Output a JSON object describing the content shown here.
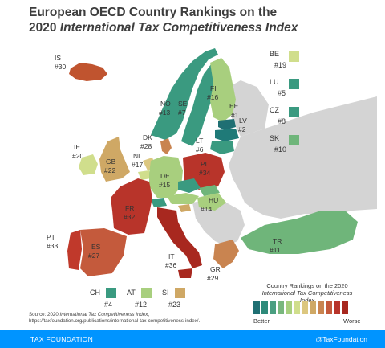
{
  "title": {
    "line1": "European OECD Country Rankings on the",
    "line2_prefix": "2020 ",
    "line2_italic": "International Tax Competitiveness Index"
  },
  "colors": {
    "teal_dark": "#1f7a78",
    "teal": "#3a9a80",
    "green": "#6fb57a",
    "light_green": "#a8cf7e",
    "yellow_green": "#d0de8c",
    "tan": "#cfa865",
    "orange": "#c98450",
    "red": "#c0392b",
    "dark_red": "#a8281f",
    "non_oecd": "#d4d4d4",
    "footer": "#0094ff"
  },
  "countries": [
    {
      "code": "IS",
      "rank": "#30"
    },
    {
      "code": "NO",
      "rank": "#13"
    },
    {
      "code": "SE",
      "rank": "#7"
    },
    {
      "code": "FI",
      "rank": "#16"
    },
    {
      "code": "EE",
      "rank": "#1"
    },
    {
      "code": "LV",
      "rank": "#2"
    },
    {
      "code": "LT",
      "rank": "#6"
    },
    {
      "code": "DK",
      "rank": "#28"
    },
    {
      "code": "IE",
      "rank": "#20"
    },
    {
      "code": "GB",
      "rank": "#22"
    },
    {
      "code": "NL",
      "rank": "#17"
    },
    {
      "code": "DE",
      "rank": "#15"
    },
    {
      "code": "PL",
      "rank": "#34"
    },
    {
      "code": "HU",
      "rank": "#14"
    },
    {
      "code": "FR",
      "rank": "#32"
    },
    {
      "code": "PT",
      "rank": "#33"
    },
    {
      "code": "ES",
      "rank": "#27"
    },
    {
      "code": "IT",
      "rank": "#36"
    },
    {
      "code": "GR",
      "rank": "#29"
    },
    {
      "code": "TR",
      "rank": "#11"
    }
  ],
  "side_boxes": [
    {
      "code": "BE",
      "rank": "#19",
      "color": "#d0de8c"
    },
    {
      "code": "LU",
      "rank": "#5",
      "color": "#3a9a80"
    },
    {
      "code": "CZ",
      "rank": "#8",
      "color": "#3a9a80"
    },
    {
      "code": "SK",
      "rank": "#10",
      "color": "#6fb57a"
    }
  ],
  "bottom_boxes": [
    {
      "code": "CH",
      "rank": "#4",
      "color": "#3a9a80"
    },
    {
      "code": "AT",
      "rank": "#12",
      "color": "#a8cf7e"
    },
    {
      "code": "SI",
      "rank": "#23",
      "color": "#cfa865"
    }
  ],
  "legend": {
    "title_line1": "Country Rankings on the 2020",
    "title_line2": "International Tax Competitiveness Index",
    "low_label": "Better",
    "high_label": "Worse",
    "scale": [
      "#1f6f73",
      "#2e8a7a",
      "#4a9f80",
      "#79b77d",
      "#a8cf7e",
      "#d0de8c",
      "#dcc77f",
      "#cfa865",
      "#c98450",
      "#c45a3c",
      "#b8342a",
      "#a8281f"
    ]
  },
  "source": {
    "prefix": "Source: 2020 ",
    "italic": "International Tax Competitiveness Index",
    "suffix": ",",
    "url": "https://taxfoundation.org/publications/international-tax-competitiveness-index/."
  },
  "footer": {
    "brand": "TAX FOUNDATION",
    "handle": "@TaxFoundation"
  }
}
